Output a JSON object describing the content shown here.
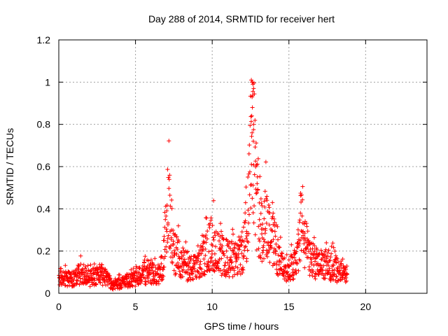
{
  "chart_data": {
    "type": "scatter",
    "title": "Day 288 of 2014, SRMTID for receiver hert",
    "xlabel": "GPS time / hours",
    "ylabel": "SRMTID / TECUs",
    "xlim": [
      0,
      24
    ],
    "ylim": [
      0,
      1.2
    ],
    "xticks": [
      0,
      5,
      10,
      15,
      20
    ],
    "yticks": [
      0,
      0.2,
      0.4,
      0.6,
      0.8,
      1.0,
      1.2
    ],
    "ytick_labels": [
      "0",
      "0.2",
      "0.4",
      "0.6",
      "0.8",
      "1",
      "1.2"
    ],
    "grid": true,
    "marker": "+",
    "colors": {
      "series": "#ff0000",
      "grid": "#a0a0a0",
      "axis": "#000000"
    },
    "series": [
      {
        "name": "SRMTID",
        "description_trend": [
          [
            0.0,
            0.08
          ],
          [
            0.5,
            0.07
          ],
          [
            1.0,
            0.07
          ],
          [
            1.5,
            0.1
          ],
          [
            2.0,
            0.07
          ],
          [
            2.5,
            0.09
          ],
          [
            3.0,
            0.08
          ],
          [
            3.5,
            0.04
          ],
          [
            4.0,
            0.05
          ],
          [
            4.5,
            0.06
          ],
          [
            5.0,
            0.07
          ],
          [
            5.5,
            0.09
          ],
          [
            6.0,
            0.1
          ],
          [
            6.5,
            0.08
          ],
          [
            6.8,
            0.15
          ],
          [
            7.0,
            0.3
          ],
          [
            7.2,
            0.4
          ],
          [
            7.5,
            0.2
          ],
          [
            8.0,
            0.15
          ],
          [
            8.5,
            0.12
          ],
          [
            9.0,
            0.12
          ],
          [
            9.5,
            0.18
          ],
          [
            10.0,
            0.25
          ],
          [
            10.5,
            0.18
          ],
          [
            11.0,
            0.17
          ],
          [
            11.5,
            0.16
          ],
          [
            12.0,
            0.2
          ],
          [
            12.3,
            0.35
          ],
          [
            12.6,
            0.9
          ],
          [
            12.9,
            0.45
          ],
          [
            13.2,
            0.3
          ],
          [
            13.5,
            0.35
          ],
          [
            14.0,
            0.25
          ],
          [
            14.5,
            0.13
          ],
          [
            15.0,
            0.12
          ],
          [
            15.5,
            0.14
          ],
          [
            15.8,
            0.35
          ],
          [
            16.0,
            0.25
          ],
          [
            16.5,
            0.15
          ],
          [
            17.0,
            0.14
          ],
          [
            17.5,
            0.14
          ],
          [
            18.0,
            0.12
          ],
          [
            18.5,
            0.09
          ]
        ]
      }
    ]
  }
}
